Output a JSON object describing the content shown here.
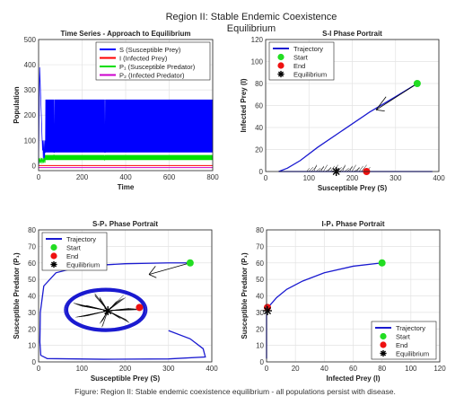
{
  "figure": {
    "suptitle_line1": "Region II: Stable Endemic Coexistence",
    "suptitle_line2": "Equilibrium",
    "caption": "Figure: Region II: Stable endemic coexistence equilibrium - all populations persist with disease."
  },
  "colors": {
    "S": "#0000ff",
    "I": "#ff0000",
    "P1": "#00dd00",
    "P2": "#cc00cc",
    "traj": "#1a1ad0",
    "start": "#22dd22",
    "end": "#ee1111",
    "eq": "#000000"
  },
  "chart_data": [
    {
      "id": "ts",
      "type": "line",
      "title": "Time Series - Approach to Equilibrium",
      "xlabel": "Time",
      "ylabel": "Population",
      "xlim": [
        0,
        800
      ],
      "ylim": [
        -20,
        500
      ],
      "xticks": [
        "0",
        "200",
        "400",
        "600",
        "800"
      ],
      "yticks": [
        "0",
        "100",
        "200",
        "300",
        "400",
        "500"
      ],
      "grid": true,
      "legend_position": "top-right",
      "series": [
        {
          "name": "S (Susceptible Prey)",
          "key": "S",
          "peak": 390,
          "osc_low": 52,
          "osc_high": 262
        },
        {
          "name": "I (Infected Prey)",
          "key": "I",
          "level": 0
        },
        {
          "name": "P₁ (Susceptible Predator)",
          "key": "P1",
          "osc_low": 22,
          "osc_high": 42
        },
        {
          "name": "P₂ (Infected Predator)",
          "key": "P2",
          "level": -8
        }
      ]
    },
    {
      "id": "si",
      "type": "line",
      "title": "S-I Phase Portrait",
      "xlabel": "Susceptible Prey (S)",
      "ylabel": "Infected Prey (I)",
      "xlim": [
        0,
        400
      ],
      "ylim": [
        0,
        120
      ],
      "xticks": [
        "0",
        "100",
        "200",
        "300",
        "400"
      ],
      "yticks": [
        "0",
        "20",
        "40",
        "60",
        "80",
        "100",
        "120"
      ],
      "grid": true,
      "legend_position": "top-left",
      "legend": [
        "Trajectory",
        "Start",
        "End",
        "Equilibrium"
      ],
      "start": [
        350,
        80
      ],
      "end": [
        233,
        0
      ],
      "equilibrium": [
        163,
        0
      ]
    },
    {
      "id": "sp",
      "type": "line",
      "title": "S-P₁ Phase Portrait",
      "xlabel": "Susceptible Prey (S)",
      "ylabel": "Susceptible Predator (P₁)",
      "xlim": [
        0,
        400
      ],
      "ylim": [
        0,
        80
      ],
      "xticks": [
        "0",
        "100",
        "200",
        "300",
        "400"
      ],
      "yticks": [
        "0",
        "10",
        "20",
        "30",
        "40",
        "50",
        "60",
        "70",
        "80"
      ],
      "grid": true,
      "legend_position": "top-left",
      "legend": [
        "Trajectory",
        "Start",
        "End",
        "Equilibrium"
      ],
      "start": [
        350,
        60
      ],
      "end": [
        233,
        33
      ],
      "equilibrium": [
        160,
        31
      ]
    },
    {
      "id": "ip",
      "type": "line",
      "title": "I-P₁ Phase Portrait",
      "xlabel": "Infected Prey (I)",
      "ylabel": "Susceptible Predator (P₁)",
      "xlim": [
        0,
        120
      ],
      "ylim": [
        0,
        80
      ],
      "xticks": [
        "0",
        "20",
        "40",
        "60",
        "80",
        "100",
        "120"
      ],
      "yticks": [
        "0",
        "10",
        "20",
        "30",
        "40",
        "50",
        "60",
        "70",
        "80"
      ],
      "grid": true,
      "legend_position": "bottom-right",
      "legend": [
        "Trajectory",
        "Start",
        "End",
        "Equilibrium"
      ],
      "start": [
        80,
        60
      ],
      "end": [
        0,
        33
      ],
      "equilibrium": [
        0,
        31
      ]
    }
  ]
}
